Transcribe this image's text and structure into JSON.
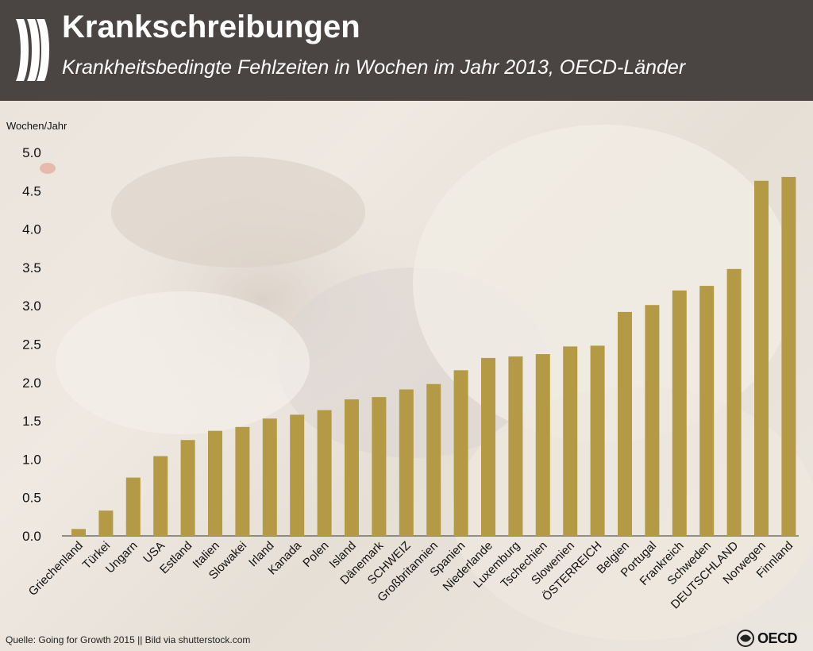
{
  "header": {
    "title": "Krankschreibungen",
    "subtitle": "Krankheitsbedingte Fehlzeiten in Wochen im Jahr 2013, OECD-Länder"
  },
  "footer": {
    "source": "Quelle: Going for Growth 2015 || Bild via shutterstock.com",
    "brand": "OECD"
  },
  "colors": {
    "header_bg": "#4a4443",
    "bar": "#b59a45",
    "text": "#111111"
  },
  "chart_data": {
    "type": "bar",
    "title": "Krankschreibungen",
    "subtitle": "Krankheitsbedingte Fehlzeiten in Wochen im Jahr 2013, OECD-Länder",
    "xlabel": "",
    "ylabel": "Wochen/Jahr",
    "ylim": [
      0,
      5
    ],
    "yticks": [
      "0.0",
      "0.5",
      "1.0",
      "1.5",
      "2.0",
      "2.5",
      "3.0",
      "3.5",
      "4.0",
      "4.5",
      "5.0"
    ],
    "grid": false,
    "categories": [
      "Griechenland",
      "Türkei",
      "Ungarn",
      "USA",
      "Estland",
      "Italien",
      "Slowakei",
      "Irland",
      "Kanada",
      "Polen",
      "Island",
      "Dänemark",
      "SCHWEIZ",
      "Großbritannien",
      "Spanien",
      "Niederlande",
      "Luxemburg",
      "Tschechien",
      "Slowenien",
      "ÖSTERREICH",
      "Belgien",
      "Portugal",
      "Frankreich",
      "Schweden",
      "DEUTSCHLAND",
      "Norwegen",
      "Finnland"
    ],
    "values": [
      0.09,
      0.33,
      0.76,
      1.04,
      1.25,
      1.37,
      1.42,
      1.53,
      1.58,
      1.64,
      1.78,
      1.81,
      1.91,
      1.98,
      2.16,
      2.32,
      2.34,
      2.37,
      2.47,
      2.48,
      2.92,
      3.01,
      3.2,
      3.26,
      3.48,
      4.63,
      4.68
    ]
  }
}
